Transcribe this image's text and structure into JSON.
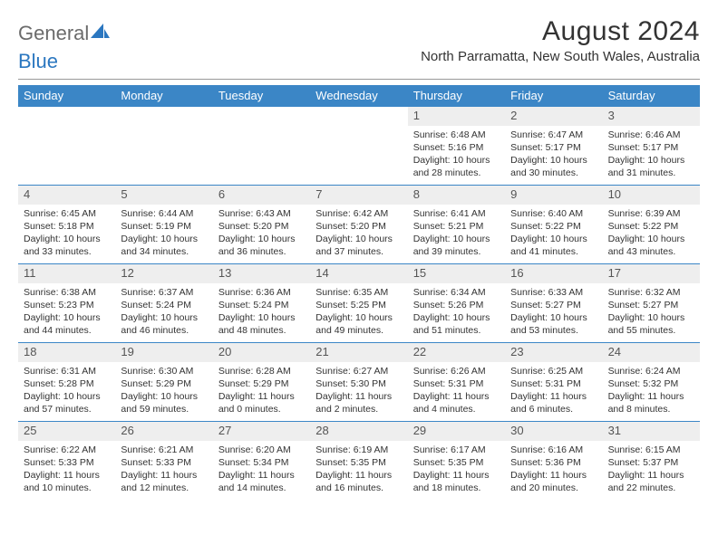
{
  "logo": {
    "word1": "General",
    "word2": "Blue"
  },
  "title": "August 2024",
  "subtitle": "North Parramatta, New South Wales, Australia",
  "colors": {
    "header_bg": "#3b86c6",
    "header_text": "#ffffff",
    "daynum_bg": "#eeeeee",
    "rule": "#999999",
    "logo_gray": "#6b6b6b",
    "logo_blue": "#2b77c0"
  },
  "dow": [
    "Sunday",
    "Monday",
    "Tuesday",
    "Wednesday",
    "Thursday",
    "Friday",
    "Saturday"
  ],
  "first_weekday_index": 4,
  "days": [
    {
      "n": "1",
      "sr": "6:48 AM",
      "ss": "5:16 PM",
      "dl": "10 hours and 28 minutes."
    },
    {
      "n": "2",
      "sr": "6:47 AM",
      "ss": "5:17 PM",
      "dl": "10 hours and 30 minutes."
    },
    {
      "n": "3",
      "sr": "6:46 AM",
      "ss": "5:17 PM",
      "dl": "10 hours and 31 minutes."
    },
    {
      "n": "4",
      "sr": "6:45 AM",
      "ss": "5:18 PM",
      "dl": "10 hours and 33 minutes."
    },
    {
      "n": "5",
      "sr": "6:44 AM",
      "ss": "5:19 PM",
      "dl": "10 hours and 34 minutes."
    },
    {
      "n": "6",
      "sr": "6:43 AM",
      "ss": "5:20 PM",
      "dl": "10 hours and 36 minutes."
    },
    {
      "n": "7",
      "sr": "6:42 AM",
      "ss": "5:20 PM",
      "dl": "10 hours and 37 minutes."
    },
    {
      "n": "8",
      "sr": "6:41 AM",
      "ss": "5:21 PM",
      "dl": "10 hours and 39 minutes."
    },
    {
      "n": "9",
      "sr": "6:40 AM",
      "ss": "5:22 PM",
      "dl": "10 hours and 41 minutes."
    },
    {
      "n": "10",
      "sr": "6:39 AM",
      "ss": "5:22 PM",
      "dl": "10 hours and 43 minutes."
    },
    {
      "n": "11",
      "sr": "6:38 AM",
      "ss": "5:23 PM",
      "dl": "10 hours and 44 minutes."
    },
    {
      "n": "12",
      "sr": "6:37 AM",
      "ss": "5:24 PM",
      "dl": "10 hours and 46 minutes."
    },
    {
      "n": "13",
      "sr": "6:36 AM",
      "ss": "5:24 PM",
      "dl": "10 hours and 48 minutes."
    },
    {
      "n": "14",
      "sr": "6:35 AM",
      "ss": "5:25 PM",
      "dl": "10 hours and 49 minutes."
    },
    {
      "n": "15",
      "sr": "6:34 AM",
      "ss": "5:26 PM",
      "dl": "10 hours and 51 minutes."
    },
    {
      "n": "16",
      "sr": "6:33 AM",
      "ss": "5:27 PM",
      "dl": "10 hours and 53 minutes."
    },
    {
      "n": "17",
      "sr": "6:32 AM",
      "ss": "5:27 PM",
      "dl": "10 hours and 55 minutes."
    },
    {
      "n": "18",
      "sr": "6:31 AM",
      "ss": "5:28 PM",
      "dl": "10 hours and 57 minutes."
    },
    {
      "n": "19",
      "sr": "6:30 AM",
      "ss": "5:29 PM",
      "dl": "10 hours and 59 minutes."
    },
    {
      "n": "20",
      "sr": "6:28 AM",
      "ss": "5:29 PM",
      "dl": "11 hours and 0 minutes."
    },
    {
      "n": "21",
      "sr": "6:27 AM",
      "ss": "5:30 PM",
      "dl": "11 hours and 2 minutes."
    },
    {
      "n": "22",
      "sr": "6:26 AM",
      "ss": "5:31 PM",
      "dl": "11 hours and 4 minutes."
    },
    {
      "n": "23",
      "sr": "6:25 AM",
      "ss": "5:31 PM",
      "dl": "11 hours and 6 minutes."
    },
    {
      "n": "24",
      "sr": "6:24 AM",
      "ss": "5:32 PM",
      "dl": "11 hours and 8 minutes."
    },
    {
      "n": "25",
      "sr": "6:22 AM",
      "ss": "5:33 PM",
      "dl": "11 hours and 10 minutes."
    },
    {
      "n": "26",
      "sr": "6:21 AM",
      "ss": "5:33 PM",
      "dl": "11 hours and 12 minutes."
    },
    {
      "n": "27",
      "sr": "6:20 AM",
      "ss": "5:34 PM",
      "dl": "11 hours and 14 minutes."
    },
    {
      "n": "28",
      "sr": "6:19 AM",
      "ss": "5:35 PM",
      "dl": "11 hours and 16 minutes."
    },
    {
      "n": "29",
      "sr": "6:17 AM",
      "ss": "5:35 PM",
      "dl": "11 hours and 18 minutes."
    },
    {
      "n": "30",
      "sr": "6:16 AM",
      "ss": "5:36 PM",
      "dl": "11 hours and 20 minutes."
    },
    {
      "n": "31",
      "sr": "6:15 AM",
      "ss": "5:37 PM",
      "dl": "11 hours and 22 minutes."
    }
  ],
  "labels": {
    "sunrise": "Sunrise:",
    "sunset": "Sunset:",
    "daylight": "Daylight:"
  }
}
